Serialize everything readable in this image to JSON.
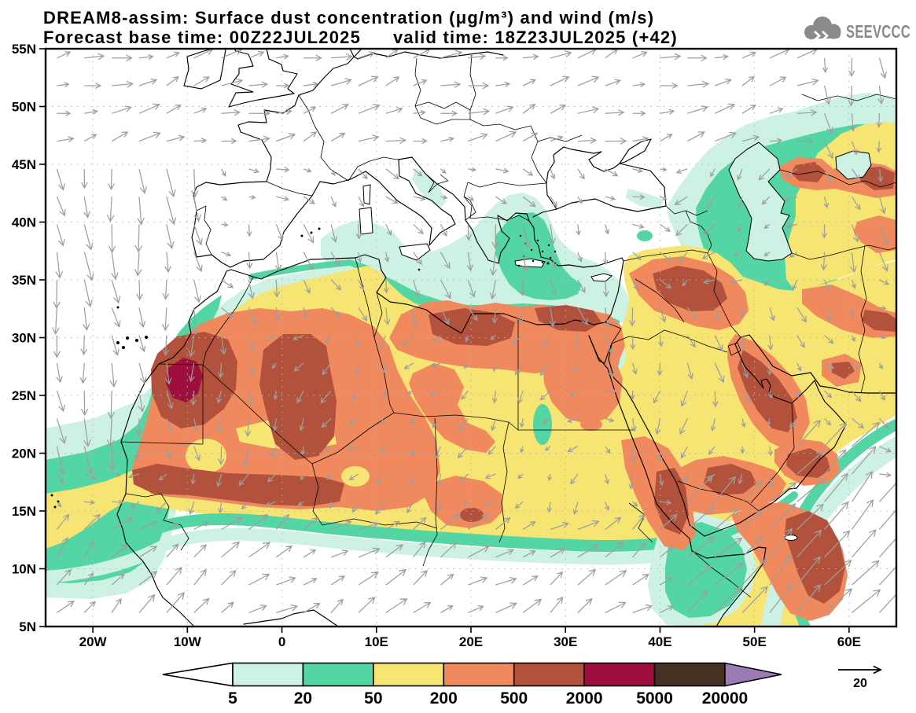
{
  "header": {
    "title": "DREAM8-assim: Surface dust concentration (μg/m³) and wind (m/s)",
    "subtitle_left": "Forecast base time: 00Z22JUL2025",
    "subtitle_right": "valid time: 18Z23JUL2025 (+42)",
    "logo_text": "SEEVCCC"
  },
  "axes": {
    "lat_ticks": [
      {
        "value": 55,
        "label": "55N"
      },
      {
        "value": 50,
        "label": "50N"
      },
      {
        "value": 45,
        "label": "45N"
      },
      {
        "value": 40,
        "label": "40N"
      },
      {
        "value": 35,
        "label": "35N"
      },
      {
        "value": 30,
        "label": "30N"
      },
      {
        "value": 25,
        "label": "25N"
      },
      {
        "value": 20,
        "label": "20N"
      },
      {
        "value": 15,
        "label": "15N"
      },
      {
        "value": 10,
        "label": "10N"
      },
      {
        "value": 5,
        "label": "5N"
      }
    ],
    "lon_ticks": [
      {
        "value": -20,
        "label": "20W"
      },
      {
        "value": -10,
        "label": "10W"
      },
      {
        "value": 0,
        "label": "0"
      },
      {
        "value": 10,
        "label": "10E"
      },
      {
        "value": 20,
        "label": "20E"
      },
      {
        "value": 30,
        "label": "30E"
      },
      {
        "value": 40,
        "label": "40E"
      },
      {
        "value": 50,
        "label": "50E"
      },
      {
        "value": 60,
        "label": "60E"
      }
    ]
  },
  "legend": {
    "bin_labels": [
      "5",
      "20",
      "50",
      "200",
      "500",
      "2000",
      "5000",
      "20000"
    ],
    "colors": {
      "below": "#ffffff",
      "c1": "#cdf2e4",
      "c2": "#53d6a3",
      "c3": "#f7e573",
      "c4": "#f0895e",
      "c5": "#b2523d",
      "c6": "#9e0f3e",
      "c7": "#463021",
      "above": "#9c7bb5"
    },
    "units": "μg/m³"
  },
  "wind": {
    "reference_label": "20",
    "units": "m/s",
    "arrow_color": "#9e9e9e"
  },
  "chart_data": {
    "type": "contour-map",
    "variable": "surface dust concentration",
    "units": "μg/m³",
    "contour_levels": [
      5,
      20,
      50,
      200,
      500,
      2000,
      5000,
      20000
    ],
    "lon_range": [
      -25,
      65
    ],
    "lat_range": [
      5,
      55
    ],
    "model": "DREAM8-assim",
    "forecast_base_time": "00Z22JUL2025",
    "valid_time": "18Z23JUL2025",
    "lead_hours": 42,
    "wind_reference_ms": 20
  }
}
